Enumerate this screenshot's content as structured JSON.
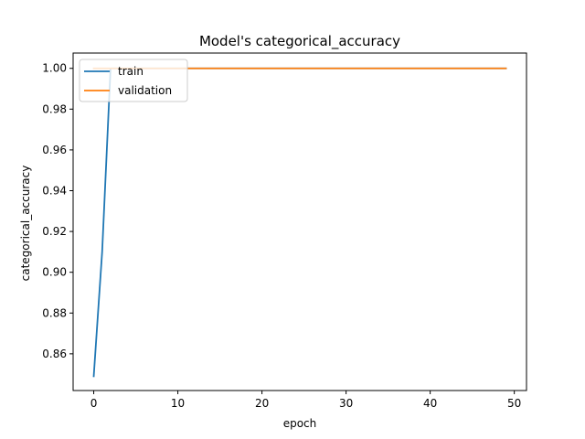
{
  "chart_data": {
    "type": "line",
    "title": "Model's categorical_accuracy",
    "xlabel": "epoch",
    "ylabel": "categorical_accuracy",
    "xlim": [
      -2.45,
      51.45
    ],
    "ylim": [
      0.842,
      1.0075
    ],
    "xticks": [
      0,
      10,
      20,
      30,
      40,
      50
    ],
    "yticks": [
      0.86,
      0.88,
      0.9,
      0.92,
      0.94,
      0.96,
      0.98,
      1.0
    ],
    "ytick_labels": [
      "0.86",
      "0.88",
      "0.90",
      "0.92",
      "0.94",
      "0.96",
      "0.98",
      "1.00"
    ],
    "grid": false,
    "legend_position": "upper-left",
    "series": [
      {
        "name": "train",
        "color": "#1f77b4",
        "x": [
          0,
          1,
          2,
          49
        ],
        "y": [
          0.849,
          0.91,
          1.0,
          1.0
        ]
      },
      {
        "name": "validation",
        "color": "#ff7f0e",
        "x": [
          0,
          49
        ],
        "y": [
          1.0,
          1.0
        ]
      }
    ]
  }
}
